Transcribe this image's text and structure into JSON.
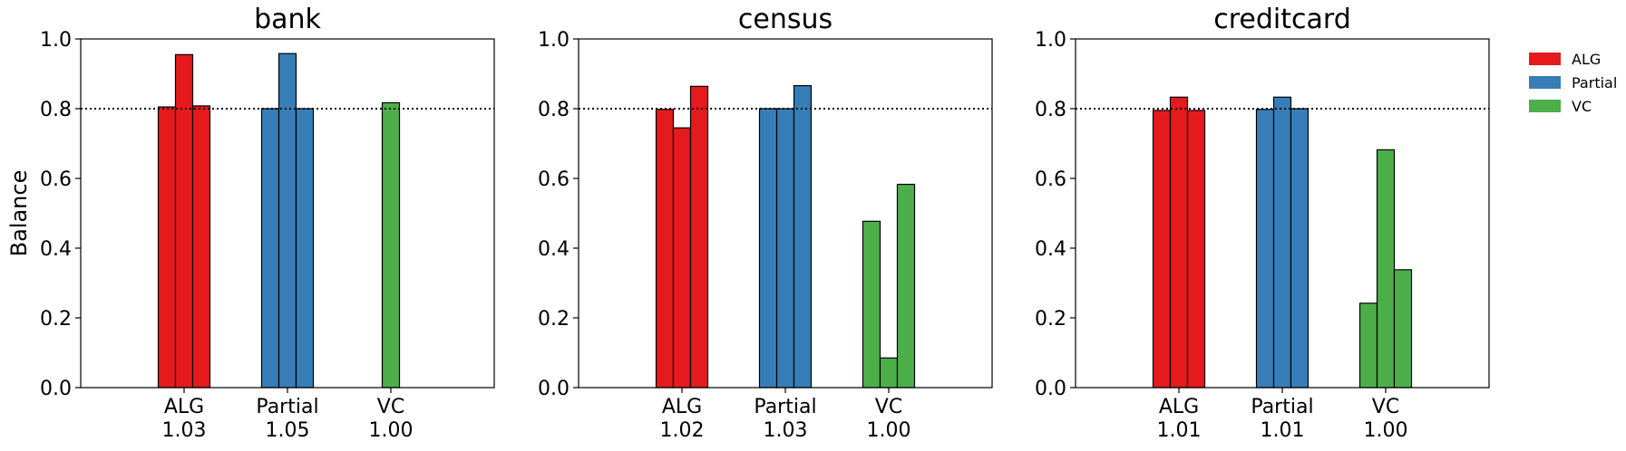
{
  "chart_data": {
    "type": "bar",
    "ylabel": "Balance",
    "ylim": [
      0,
      1.0
    ],
    "yticks": [
      "0.0",
      "0.2",
      "0.4",
      "0.6",
      "0.8",
      "1.0"
    ],
    "reference_line": 0.8,
    "legend": {
      "placement": "right-top",
      "entries": [
        {
          "name": "ALG",
          "color": "#e41a1c"
        },
        {
          "name": "Partial",
          "color": "#377eb8"
        },
        {
          "name": "VC",
          "color": "#4daf4a"
        }
      ]
    },
    "panels": [
      {
        "title": "bank",
        "categories": [
          {
            "name": "ALG",
            "sub": "1.03",
            "color": "#e41a1c",
            "values": [
              0.805,
              0.955,
              0.808
            ]
          },
          {
            "name": "Partial",
            "sub": "1.05",
            "color": "#377eb8",
            "values": [
              0.8,
              0.958,
              0.8
            ]
          },
          {
            "name": "VC",
            "sub": "1.00",
            "color": "#4daf4a",
            "values": [
              0.0,
              0.817,
              0.0
            ]
          }
        ]
      },
      {
        "title": "census",
        "categories": [
          {
            "name": "ALG",
            "sub": "1.02",
            "color": "#e41a1c",
            "values": [
              0.798,
              0.745,
              0.864
            ]
          },
          {
            "name": "Partial",
            "sub": "1.03",
            "color": "#377eb8",
            "values": [
              0.8,
              0.8,
              0.866
            ]
          },
          {
            "name": "VC",
            "sub": "1.00",
            "color": "#4daf4a",
            "values": [
              0.477,
              0.085,
              0.583
            ]
          }
        ]
      },
      {
        "title": "creditcard",
        "categories": [
          {
            "name": "ALG",
            "sub": "1.01",
            "color": "#e41a1c",
            "values": [
              0.795,
              0.833,
              0.795
            ]
          },
          {
            "name": "Partial",
            "sub": "1.01",
            "color": "#377eb8",
            "values": [
              0.798,
              0.833,
              0.8
            ]
          },
          {
            "name": "VC",
            "sub": "1.00",
            "color": "#4daf4a",
            "values": [
              0.242,
              0.682,
              0.338
            ]
          }
        ]
      }
    ]
  }
}
